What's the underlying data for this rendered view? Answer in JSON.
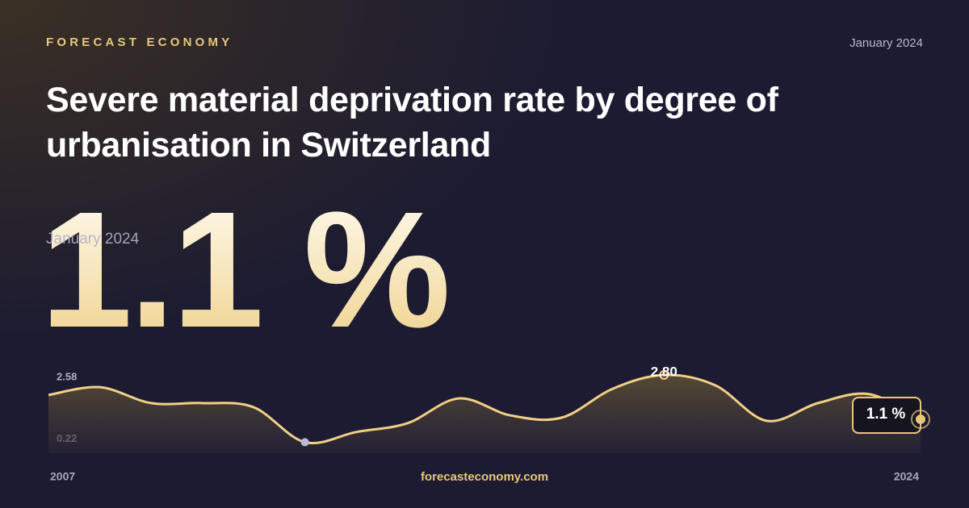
{
  "brand": "FORECAST ECONOMY",
  "date": "January 2024",
  "title": "Severe material deprivation rate by degree of urbanisation in Switzerland",
  "headline": "1.1 %",
  "headline_date": "January 2024",
  "site": "forecasteconomy.com",
  "chart_data": {
    "type": "line",
    "x": [
      2007,
      2008,
      2009,
      2010,
      2011,
      2012,
      2013,
      2014,
      2015,
      2016,
      2017,
      2018,
      2019,
      2020,
      2021,
      2022,
      2023,
      2024
    ],
    "values": [
      2.03,
      2.33,
      1.72,
      1.72,
      1.56,
      0.22,
      0.61,
      0.95,
      1.9,
      1.25,
      1.16,
      2.27,
      2.8,
      2.4,
      1.04,
      1.72,
      2.06,
      1.1
    ],
    "color": "#f0cf86",
    "xlim": [
      2007,
      2024
    ],
    "xticks": [
      2007,
      2024
    ],
    "ylim": [
      -0.2,
      3.2
    ],
    "yticks": [
      0.22,
      2.58
    ],
    "max_label": "2.80",
    "last_label": "1.1 %"
  }
}
